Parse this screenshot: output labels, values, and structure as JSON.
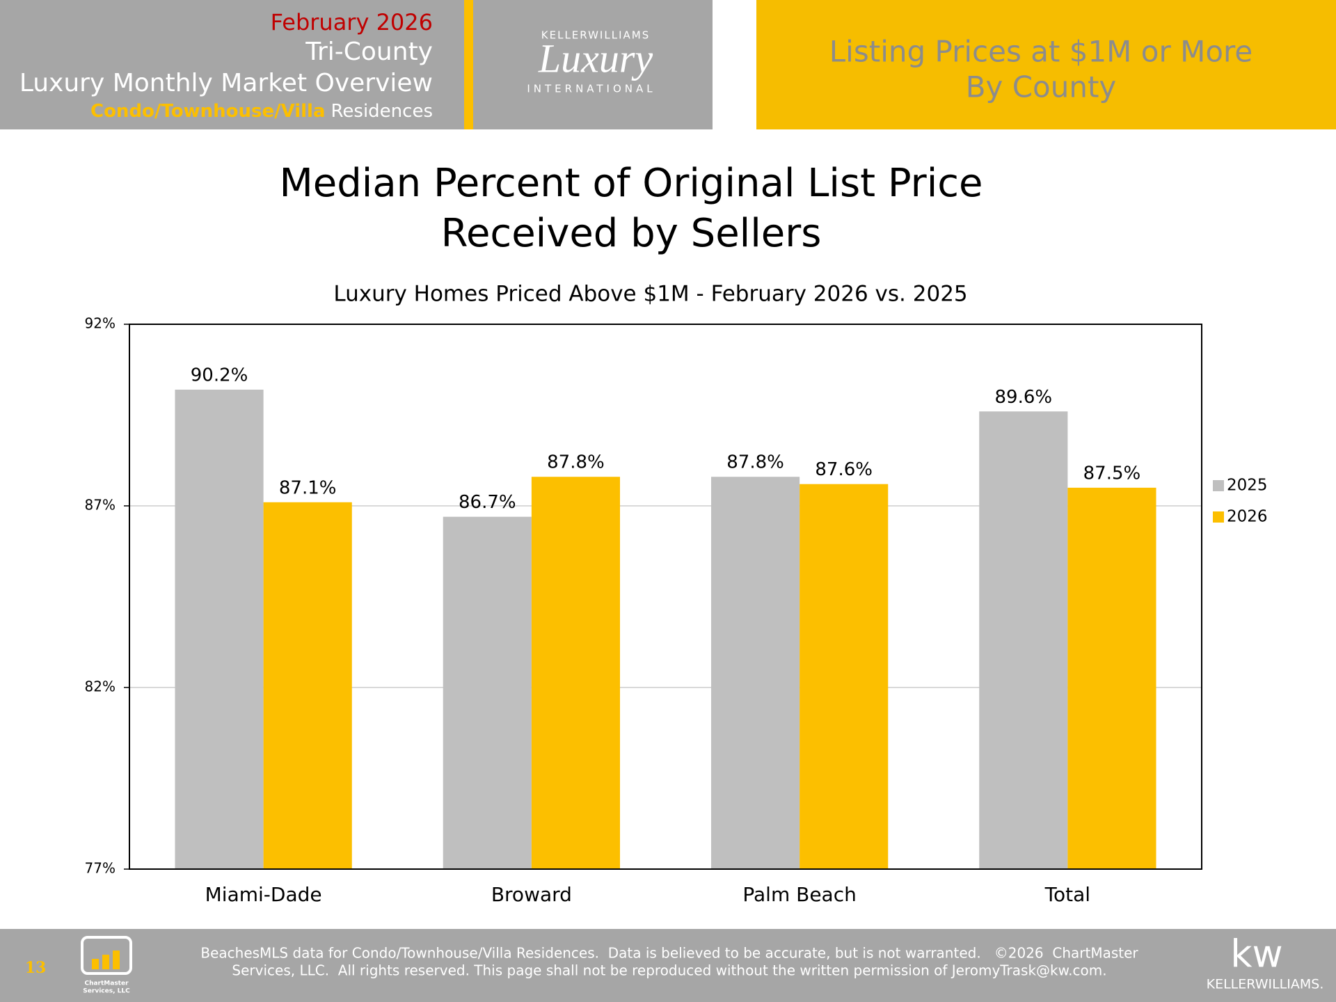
{
  "header": {
    "date": "February 2026",
    "region": "Tri-County",
    "report": "Luxury Monthly Market Overview",
    "segment": "Condo/Townhouse/Villa",
    "segment_suffix": "Residences"
  },
  "logo": {
    "brand": "KELLERWILLIAMS",
    "wordmark": "Luxury",
    "sub": "INTERNATIONAL"
  },
  "banner": [
    "Listing Prices at $1M or More",
    "By County"
  ],
  "chart_data": {
    "type": "bar",
    "title": [
      "Median Percent of Original List Price",
      "Received by Sellers"
    ],
    "subtitle": "Luxury Homes Priced Above $1M - February 2026 vs. 2025",
    "categories": [
      "Miami-Dade",
      "Broward",
      "Palm Beach",
      "Total"
    ],
    "series": [
      {
        "name": "2025",
        "color": "#bfbfbf",
        "values": [
          90.2,
          86.7,
          87.8,
          89.6
        ],
        "value_labels": [
          "90.2%",
          "86.7%",
          "87.8%",
          "89.6%"
        ]
      },
      {
        "name": "2026",
        "color": "#fcbf00",
        "values": [
          87.1,
          87.8,
          87.6,
          87.5
        ],
        "value_labels": [
          "87.1%",
          "87.8%",
          "87.6%",
          "87.5%"
        ]
      }
    ],
    "ylim": [
      77,
      92
    ],
    "yticks": [
      {
        "value": 77,
        "label": "77%"
      },
      {
        "value": 82,
        "label": "82%"
      },
      {
        "value": 87,
        "label": "87%"
      },
      {
        "value": 92,
        "label": "92%"
      }
    ],
    "grid": true,
    "legend": "right"
  },
  "footer": {
    "page": "13",
    "credit": [
      "ChartMaster",
      "Services, LLC"
    ],
    "disclaimer": [
      "BeachesMLS data for Condo/Townhouse/Villa Residences.  Data is believed to be accurate, but is not warranted.   ©2026  ChartMaster",
      "Services, LLC.  All rights reserved. This page shall not be reproduced without the written permission of JeromyTrask@kw.com."
    ],
    "brand_mark": "kw",
    "brand": "KELLERWILLIAMS."
  }
}
